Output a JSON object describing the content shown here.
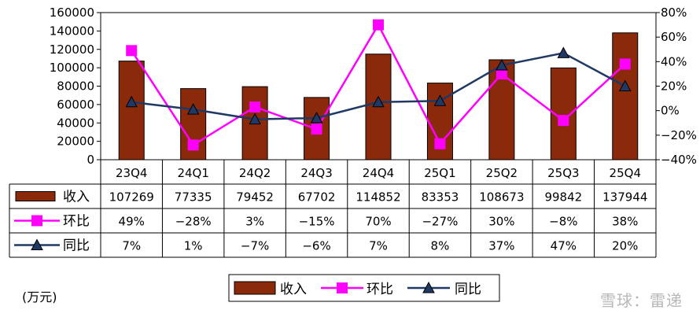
{
  "chart_data": {
    "type": "bar",
    "categories": [
      "23Q4",
      "24Q1",
      "24Q2",
      "24Q3",
      "24Q4",
      "25Q1",
      "25Q2",
      "25Q3",
      "25Q4"
    ],
    "y_left": {
      "ylim": [
        0,
        160000
      ],
      "ticks": [
        "160000",
        "140000",
        "120000",
        "100000",
        "80000",
        "60000",
        "40000",
        "20000",
        "0"
      ]
    },
    "y_right": {
      "ylim": [
        -40,
        80
      ],
      "ticks": [
        "80%",
        "60%",
        "40%",
        "20%",
        "0%",
        "−20%",
        "−40%"
      ]
    },
    "series": [
      {
        "name": "收入",
        "type": "bar",
        "axis": "left",
        "color": "#8b2a0b",
        "values": [
          107269,
          77335,
          79452,
          67702,
          114852,
          83353,
          108673,
          99842,
          137944
        ],
        "labels": [
          "107269",
          "77335",
          "79452",
          "67702",
          "114852",
          "83353",
          "108673",
          "99842",
          "137944"
        ]
      },
      {
        "name": "环比",
        "type": "line",
        "axis": "right",
        "color": "#ff00ff",
        "marker": "square",
        "values": [
          49,
          -28,
          3,
          -15,
          70,
          -27,
          30,
          -8,
          38
        ],
        "labels": [
          "49%",
          "−28%",
          "3%",
          "−15%",
          "70%",
          "−27%",
          "30%",
          "−8%",
          "38%"
        ]
      },
      {
        "name": "同比",
        "type": "line",
        "axis": "right",
        "color": "#1f3864",
        "marker": "triangle",
        "values": [
          7,
          1,
          -7,
          -6,
          7,
          8,
          37,
          47,
          20
        ],
        "labels": [
          "7%",
          "1%",
          "−7%",
          "−6%",
          "7%",
          "8%",
          "37%",
          "47%",
          "20%"
        ]
      }
    ],
    "legend": [
      "收入",
      "环比",
      "同比"
    ],
    "legend_placement": "bottom",
    "grid": false
  },
  "unit_label": "(万元)",
  "watermark": "雪球：雷递",
  "colors": {
    "bar": "#8b2a0b",
    "mom": "#ff00ff",
    "yoy": "#1f3864",
    "axis": "#000000"
  }
}
